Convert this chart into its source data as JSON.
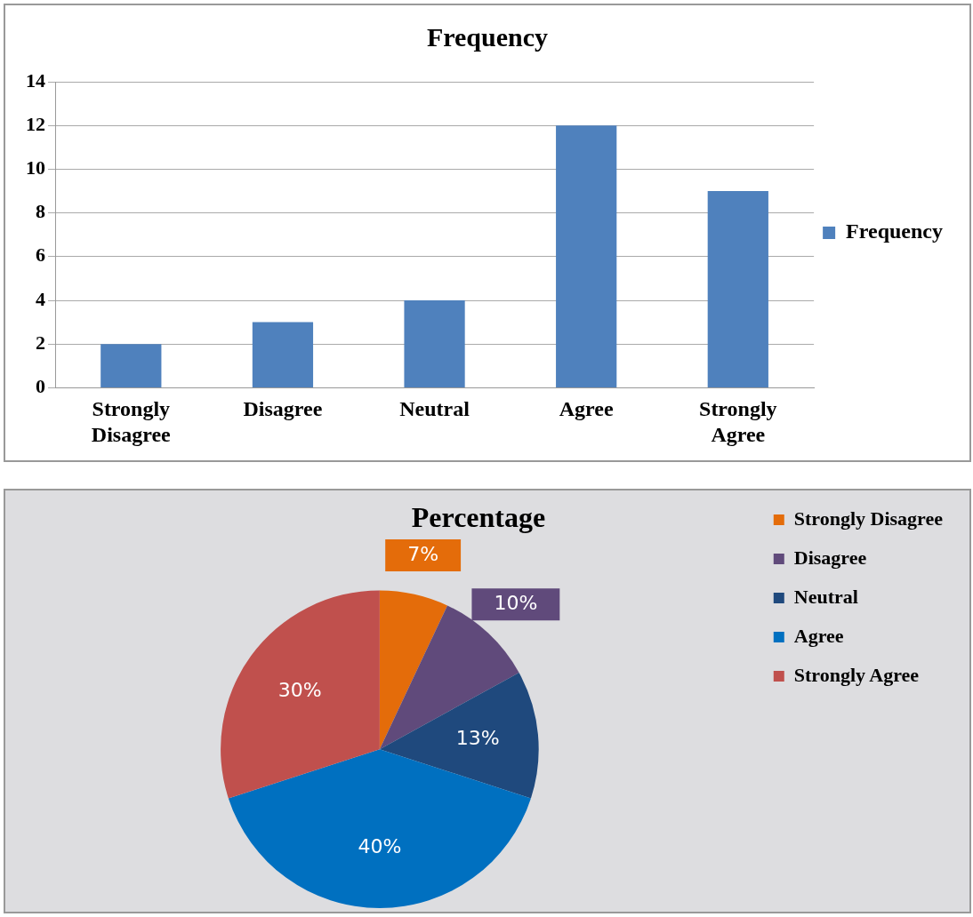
{
  "chart_data": [
    {
      "type": "bar",
      "title": "Frequency",
      "categories": [
        "Strongly Disagree",
        "Disagree",
        "Neutral",
        "Agree",
        "Strongly Agree"
      ],
      "series": [
        {
          "name": "Frequency",
          "color": "#4f81bd",
          "values": [
            2,
            3,
            4,
            12,
            9
          ]
        }
      ],
      "ylim": [
        0,
        14
      ],
      "yticks": [
        0,
        2,
        4,
        6,
        8,
        10,
        12,
        14
      ],
      "grid": "y",
      "legend": "right"
    },
    {
      "type": "pie",
      "title": "Percentage",
      "categories": [
        "Strongly Disagree",
        "Disagree",
        "Neutral",
        "Agree",
        "Strongly Agree"
      ],
      "values": [
        7,
        10,
        13,
        40,
        30
      ],
      "colors": [
        "#e46c0a",
        "#604a7b",
        "#1f497d",
        "#0070c0",
        "#c0504d"
      ],
      "value_labels": [
        "7%",
        "10%",
        "13%",
        "40%",
        "30%"
      ],
      "legend": "right"
    }
  ]
}
